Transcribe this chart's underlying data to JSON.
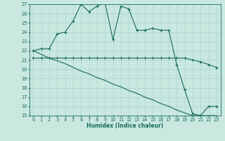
{
  "xlabel": "Humidex (Indice chaleur)",
  "xlim": [
    -0.5,
    23.5
  ],
  "ylim": [
    15,
    27
  ],
  "xticks": [
    0,
    1,
    2,
    3,
    4,
    5,
    6,
    7,
    8,
    9,
    10,
    11,
    12,
    13,
    14,
    15,
    16,
    17,
    18,
    19,
    20,
    21,
    22,
    23
  ],
  "yticks": [
    15,
    16,
    17,
    18,
    19,
    20,
    21,
    22,
    23,
    24,
    25,
    26,
    27
  ],
  "bg_color": "#c8e8e0",
  "line_color": "#1a6b5a",
  "grid_color": "#b0d8d0",
  "series1_x": [
    0,
    1,
    2,
    3,
    4,
    5,
    6,
    7,
    8,
    9,
    10,
    11,
    12,
    13,
    14,
    15,
    16,
    17,
    18,
    19,
    20,
    21,
    22,
    23
  ],
  "series1_y": [
    22.0,
    22.2,
    22.2,
    23.8,
    24.0,
    25.2,
    27.0,
    26.2,
    26.8,
    27.2,
    23.2,
    26.8,
    26.5,
    24.2,
    24.2,
    24.4,
    24.2,
    24.2,
    20.5,
    17.8,
    15.2,
    15.0,
    16.0,
    16.0
  ],
  "series2_x": [
    0,
    1,
    2,
    3,
    4,
    5,
    6,
    7,
    8,
    9,
    10,
    11,
    12,
    13,
    14,
    15,
    16,
    17,
    18,
    19,
    20,
    21,
    22,
    23
  ],
  "series2_y": [
    21.2,
    21.2,
    21.2,
    21.2,
    21.2,
    21.2,
    21.2,
    21.2,
    21.2,
    21.2,
    21.2,
    21.2,
    21.2,
    21.2,
    21.2,
    21.2,
    21.2,
    21.2,
    21.2,
    21.2,
    21.0,
    20.8,
    20.5,
    20.2
  ],
  "series3_x": [
    0,
    1,
    2,
    3,
    4,
    5,
    6,
    7,
    8,
    9,
    10,
    11,
    12,
    13,
    14,
    15,
    16,
    17,
    18,
    19,
    20,
    21,
    22,
    23
  ],
  "series3_y": [
    22.0,
    21.6,
    21.2,
    20.9,
    20.6,
    20.2,
    19.8,
    19.5,
    19.1,
    18.8,
    18.4,
    18.1,
    17.7,
    17.4,
    17.0,
    16.7,
    16.3,
    16.0,
    15.6,
    15.3,
    15.0,
    15.0,
    15.0,
    15.0
  ]
}
